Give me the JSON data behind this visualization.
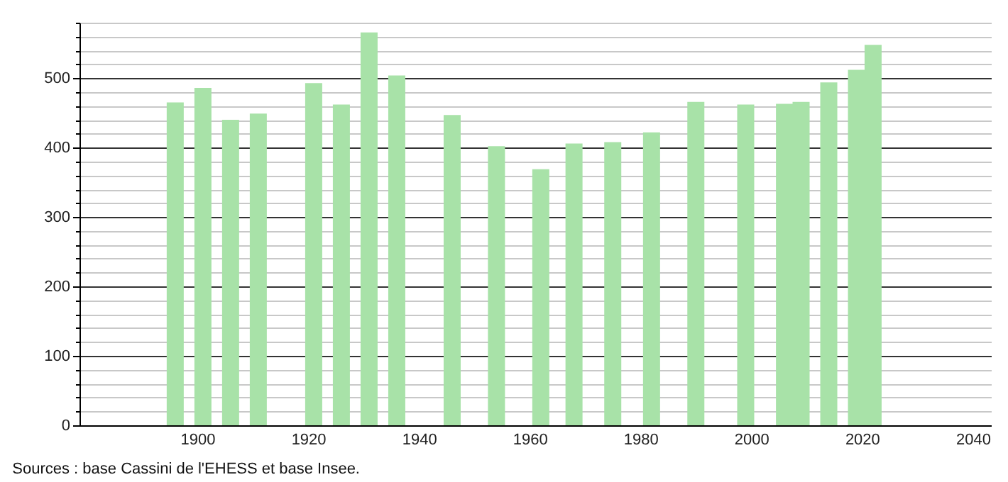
{
  "chart_data": {
    "type": "bar",
    "x": [
      1896,
      1901,
      1906,
      1911,
      1921,
      1926,
      1931,
      1936,
      1946,
      1954,
      1962,
      1968,
      1975,
      1982,
      1990,
      1999,
      2006,
      2009,
      2014,
      2019,
      2022
    ],
    "values": [
      465,
      486,
      440,
      449,
      493,
      462,
      566,
      504,
      447,
      402,
      369,
      406,
      408,
      422,
      466,
      462,
      463,
      466,
      494,
      512,
      548
    ],
    "color": "#a8e2a8",
    "xlim": [
      1880,
      2042
    ],
    "xticks": [
      1900,
      1920,
      1940,
      1960,
      1980,
      2000,
      2020,
      2040
    ],
    "ylim": [
      0,
      580
    ],
    "yticks": [
      0,
      {
        "value": 20,
        "label": null
      },
      {
        "value": 40,
        "label": null
      },
      {
        "value": 60,
        "label": null
      },
      {
        "value": 80,
        "label": null
      },
      100,
      {
        "value": 120,
        "label": null
      },
      {
        "value": 140,
        "label": null
      },
      {
        "value": 160,
        "label": null
      },
      {
        "value": 180,
        "label": null
      },
      200,
      {
        "value": 220,
        "label": null
      },
      {
        "value": 240,
        "label": null
      },
      {
        "value": 260,
        "label": null
      },
      {
        "value": 280,
        "label": null
      },
      300,
      {
        "value": 320,
        "label": null
      },
      {
        "value": 340,
        "label": null
      },
      {
        "value": 360,
        "label": null
      },
      {
        "value": 380,
        "label": null
      },
      400,
      {
        "value": 420,
        "label": null
      },
      {
        "value": 440,
        "label": null
      },
      {
        "value": 460,
        "label": null
      },
      {
        "value": 480,
        "label": null
      },
      500,
      {
        "value": 520,
        "label": null
      },
      {
        "value": 540,
        "label": null
      },
      {
        "value": 560,
        "label": null
      },
      {
        "value": 580,
        "label": null
      }
    ],
    "grid": "y",
    "annotations": [
      "Sources : base Cassini de l'EHESS et base Insee."
    ]
  }
}
